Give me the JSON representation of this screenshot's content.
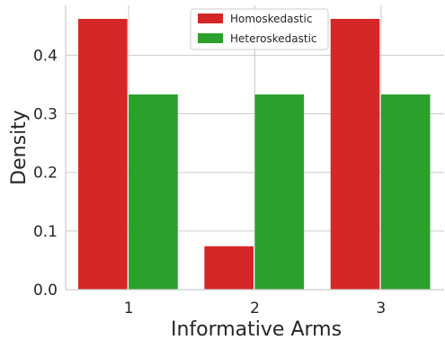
{
  "chart_data": {
    "type": "bar",
    "xlabel": "Informative Arms",
    "ylabel": "Density",
    "categories": [
      "1",
      "2",
      "3"
    ],
    "series": [
      {
        "name": "Homoskedastic",
        "color": "#d62728",
        "values": [
          0.462,
          0.074,
          0.462
        ]
      },
      {
        "name": "Heteroskedastic",
        "color": "#2ca02c",
        "values": [
          0.333,
          0.333,
          0.333
        ]
      }
    ],
    "ylim": [
      0,
      0.485
    ],
    "yticks": [
      0.0,
      0.1,
      0.2,
      0.3,
      0.4
    ],
    "ytick_labels": [
      "0.0",
      "0.1",
      "0.2",
      "0.3",
      "0.4"
    ],
    "grid": true,
    "legend_position": "top-center"
  }
}
